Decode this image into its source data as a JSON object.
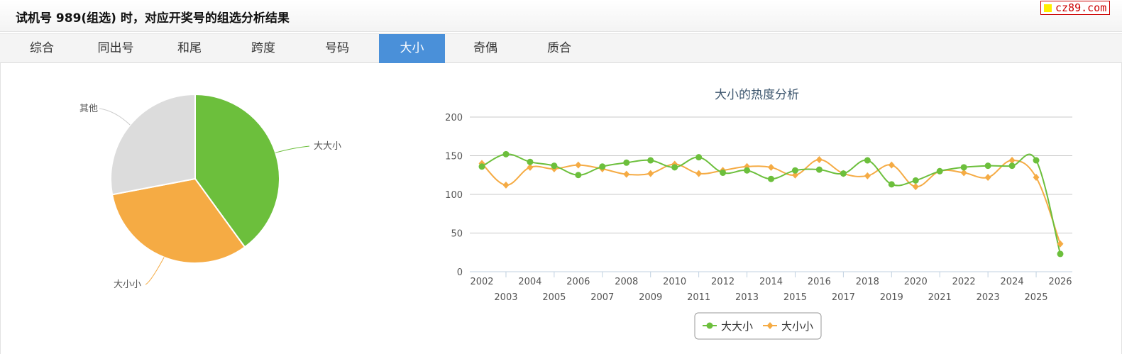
{
  "header": {
    "title": "试机号 989(组选) 时，对应开奖号的组选分析结果",
    "brand": "cz89.com"
  },
  "tabs": [
    {
      "label": "综合",
      "active": false
    },
    {
      "label": "同出号",
      "active": false
    },
    {
      "label": "和尾",
      "active": false
    },
    {
      "label": "跨度",
      "active": false
    },
    {
      "label": "号码",
      "active": false
    },
    {
      "label": "大小",
      "active": true
    },
    {
      "label": "奇偶",
      "active": false
    },
    {
      "label": "质合",
      "active": false
    }
  ],
  "colors": {
    "green": "#6cbf3c",
    "orange": "#f5ab44",
    "gray": "#dcdcdc",
    "active_tab": "#4a90d9"
  },
  "chart_data": [
    {
      "type": "pie",
      "slices": [
        {
          "label": "大大小",
          "value": 40,
          "color": "#6cbf3c"
        },
        {
          "label": "大小小",
          "value": 32,
          "color": "#f5ab44"
        },
        {
          "label": "其他",
          "value": 28,
          "color": "#dcdcdc"
        }
      ]
    },
    {
      "type": "line",
      "title": "大小的热度分析",
      "xlabel": "",
      "ylabel": "",
      "ylim": [
        0,
        200
      ],
      "yticks": [
        0,
        50,
        100,
        150,
        200
      ],
      "grid": true,
      "legend_position": "bottom",
      "x": [
        "2002",
        "2003",
        "2004",
        "2005",
        "2006",
        "2007",
        "2008",
        "2009",
        "2010",
        "2011",
        "2012",
        "2013",
        "2014",
        "2015",
        "2016",
        "2017",
        "2018",
        "2019",
        "2020",
        "2021",
        "2022",
        "2023",
        "2024",
        "2025",
        "2026"
      ],
      "series": [
        {
          "name": "大大小",
          "color": "#6cbf3c",
          "marker": "circle",
          "values": [
            136,
            152,
            142,
            137,
            125,
            136,
            141,
            144,
            135,
            148,
            128,
            131,
            120,
            131,
            132,
            127,
            144,
            113,
            118,
            130,
            135,
            137,
            137,
            144,
            23
          ]
        },
        {
          "name": "大小小",
          "color": "#f5ab44",
          "marker": "diamond",
          "values": [
            140,
            112,
            135,
            133,
            138,
            133,
            126,
            127,
            139,
            127,
            131,
            136,
            135,
            125,
            145,
            127,
            124,
            138,
            110,
            130,
            128,
            122,
            144,
            122,
            36
          ]
        }
      ]
    }
  ]
}
